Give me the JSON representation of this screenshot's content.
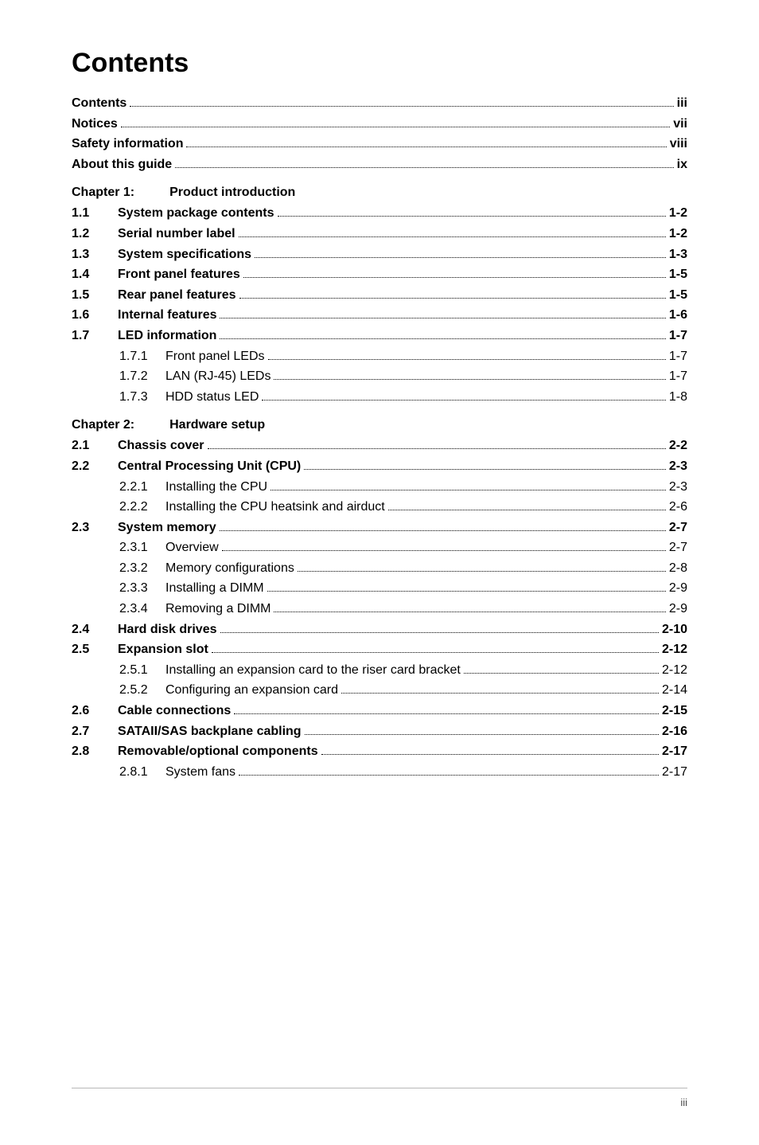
{
  "title": "Contents",
  "front": [
    {
      "label": "Contents",
      "page": "iii"
    },
    {
      "label": "Notices",
      "page": "vii"
    },
    {
      "label": "Safety information",
      "page": "viii"
    },
    {
      "label": "About this guide",
      "page": "ix"
    }
  ],
  "chapters": [
    {
      "label": "Chapter 1:",
      "title": "Product introduction",
      "items": [
        {
          "num": "1.1",
          "label": "System package contents",
          "page": "1-2"
        },
        {
          "num": "1.2",
          "label": "Serial number label",
          "page": "1-2"
        },
        {
          "num": "1.3",
          "label": "System specifications",
          "page": "1-3"
        },
        {
          "num": "1.4",
          "label": "Front panel features",
          "page": "1-5"
        },
        {
          "num": "1.5",
          "label": "Rear panel features",
          "page": "1-5"
        },
        {
          "num": "1.6",
          "label": "Internal features",
          "page": "1-6"
        },
        {
          "num": "1.7",
          "label": "LED information",
          "page": "1-7",
          "sub": [
            {
              "num": "1.7.1",
              "label": "Front panel LEDs",
              "page": "1-7"
            },
            {
              "num": "1.7.2",
              "label": "LAN (RJ-45) LEDs",
              "page": "1-7"
            },
            {
              "num": "1.7.3",
              "label": "HDD status LED",
              "page": "1-8"
            }
          ]
        }
      ]
    },
    {
      "label": "Chapter 2:",
      "title": "Hardware setup",
      "items": [
        {
          "num": "2.1",
          "label": "Chassis cover",
          "page": "2-2"
        },
        {
          "num": "2.2",
          "label": "Central Processing Unit (CPU)",
          "page": "2-3",
          "sub": [
            {
              "num": "2.2.1",
              "label": "Installing the CPU",
              "page": "2-3"
            },
            {
              "num": "2.2.2",
              "label": "Installing the CPU heatsink and airduct",
              "page": "2-6"
            }
          ]
        },
        {
          "num": "2.3",
          "label": "System memory",
          "page": "2-7",
          "sub": [
            {
              "num": "2.3.1",
              "label": "Overview",
              "page": "2-7"
            },
            {
              "num": "2.3.2",
              "label": "Memory configurations",
              "page": "2-8"
            },
            {
              "num": "2.3.3",
              "label": "Installing a DIMM",
              "page": "2-9"
            },
            {
              "num": "2.3.4",
              "label": "Removing a DIMM",
              "page": "2-9"
            }
          ]
        },
        {
          "num": "2.4",
          "label": "Hard disk drives",
          "page": "2-10"
        },
        {
          "num": "2.5",
          "label": "Expansion slot",
          "page": "2-12",
          "sub": [
            {
              "num": "2.5.1",
              "label": "Installing an expansion card to the riser card bracket",
              "page": "2-12"
            },
            {
              "num": "2.5.2",
              "label": "Configuring an expansion card",
              "page": "2-14"
            }
          ]
        },
        {
          "num": "2.6",
          "label": "Cable connections",
          "page": "2-15"
        },
        {
          "num": "2.7",
          "label": "SATAII/SAS backplane cabling",
          "page": "2-16"
        },
        {
          "num": "2.8",
          "label": "Removable/optional components",
          "page": "2-17",
          "sub": [
            {
              "num": "2.8.1",
              "label": "System fans",
              "page": "2-17"
            }
          ]
        }
      ]
    }
  ],
  "footer": "iii"
}
